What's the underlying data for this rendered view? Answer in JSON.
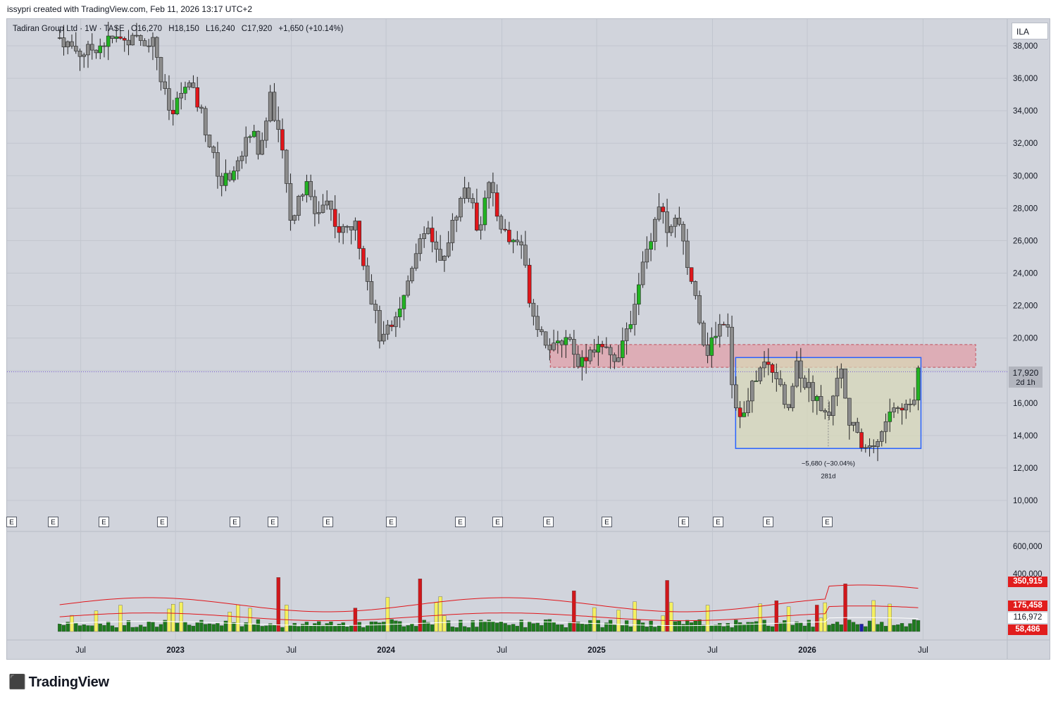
{
  "caption": "issypri created with TradingView.com, Feb 11, 2026 13:17 UTC+2",
  "legend": {
    "symbol": "Tadiran Group Ltd · 1W · TASE",
    "open": "O16,270",
    "high": "H18,150",
    "low": "L16,240",
    "close": "C17,920",
    "change": "+1,650 (+10.14%)"
  },
  "currency": "ILA",
  "current_price": {
    "value": "17,920",
    "countdown": "2d 1h"
  },
  "measure": {
    "change": "−5,680 (−30.04%)",
    "duration": "281d"
  },
  "volume_badges": [
    {
      "label": "350,915",
      "color": "#e11d1d",
      "value": 350915
    },
    {
      "label": "175,458",
      "color": "#e11d1d",
      "value": 175458
    },
    {
      "label": "116,972",
      "color": "#ffffff",
      "text_color": "#131722",
      "value": 116972
    },
    {
      "label": "58,486",
      "color": "#e11d1d",
      "value": 58486
    }
  ],
  "earnings_marker_label": "E",
  "brand": "TradingView",
  "colors": {
    "up": "#22b322",
    "down": "#e0161b",
    "neutral": "#8c8c8c",
    "zone_fill": "#e0a0aa",
    "range_border": "#2962ff",
    "range_fill": "#d9d8b6",
    "vol_green": "#1e7a1e",
    "vol_yellow": "#f5f060",
    "vol_red": "#d0171b",
    "vol_blue": "#1c1fa8",
    "ma_red": "#e0161b"
  },
  "chart_data": {
    "type": "candlestick",
    "title": "Tadiran Group Ltd · 1W · TASE",
    "ylabel": "",
    "ylim": [
      9000,
      39000
    ],
    "y_ticks": [
      "38,000",
      "36,000",
      "34,000",
      "32,000",
      "30,000",
      "28,000",
      "26,000",
      "24,000",
      "22,000",
      "20,000",
      "18,000",
      "16,000",
      "14,000",
      "12,000",
      "10,000"
    ],
    "x_ticks": [
      "Jul",
      "2023",
      "Jul",
      "2024",
      "Jul",
      "2025",
      "Jul",
      "2026",
      "Jul"
    ],
    "volume_ticks": [
      "600,000",
      "400,000"
    ],
    "price_path": [
      [
        2022.45,
        38500
      ],
      [
        2022.55,
        37500
      ],
      [
        2022.7,
        38400
      ],
      [
        2022.9,
        38300
      ],
      [
        2022.93,
        36000
      ],
      [
        2022.98,
        33500
      ],
      [
        2023.05,
        36000
      ],
      [
        2023.12,
        34000
      ],
      [
        2023.17,
        31500
      ],
      [
        2023.22,
        29500
      ],
      [
        2023.3,
        30800
      ],
      [
        2023.36,
        33000
      ],
      [
        2023.4,
        31200
      ],
      [
        2023.45,
        35000
      ],
      [
        2023.5,
        32000
      ],
      [
        2023.55,
        27200
      ],
      [
        2023.62,
        29500
      ],
      [
        2023.66,
        27700
      ],
      [
        2023.72,
        28500
      ],
      [
        2023.78,
        26500
      ],
      [
        2023.85,
        27000
      ],
      [
        2023.9,
        24500
      ],
      [
        2023.93,
        22500
      ],
      [
        2023.98,
        19500
      ],
      [
        2024.02,
        21000
      ],
      [
        2024.08,
        22300
      ],
      [
        2024.14,
        25500
      ],
      [
        2024.2,
        27000
      ],
      [
        2024.26,
        24500
      ],
      [
        2024.32,
        27200
      ],
      [
        2024.38,
        29500
      ],
      [
        2024.44,
        26500
      ],
      [
        2024.48,
        29800
      ],
      [
        2024.53,
        27500
      ],
      [
        2024.58,
        26000
      ],
      [
        2024.64,
        26000
      ],
      [
        2024.69,
        21800
      ],
      [
        2024.75,
        20000
      ],
      [
        2024.8,
        19200
      ],
      [
        2024.86,
        20300
      ],
      [
        2024.92,
        18400
      ],
      [
        2024.98,
        19500
      ],
      [
        2025.03,
        19200
      ],
      [
        2025.08,
        18700
      ],
      [
        2025.14,
        20000
      ],
      [
        2025.2,
        23500
      ],
      [
        2025.25,
        26000
      ],
      [
        2025.3,
        28500
      ],
      [
        2025.34,
        26200
      ],
      [
        2025.38,
        27500
      ],
      [
        2025.43,
        24500
      ],
      [
        2025.48,
        22000
      ],
      [
        2025.52,
        19000
      ],
      [
        2025.57,
        20500
      ],
      [
        2025.62,
        21500
      ],
      [
        2025.65,
        16000
      ],
      [
        2025.7,
        15200
      ],
      [
        2025.75,
        17500
      ],
      [
        2025.8,
        18500
      ],
      [
        2025.86,
        17800
      ],
      [
        2025.9,
        15000
      ],
      [
        2025.95,
        18500
      ],
      [
        2026.0,
        17000
      ],
      [
        2026.05,
        16200
      ],
      [
        2026.1,
        15000
      ],
      [
        2026.15,
        18500
      ],
      [
        2026.2,
        15000
      ],
      [
        2026.25,
        13500
      ],
      [
        2026.3,
        13200
      ],
      [
        2026.35,
        14000
      ],
      [
        2026.4,
        15800
      ],
      [
        2026.45,
        15500
      ],
      [
        2026.5,
        16000
      ],
      [
        2026.53,
        17920
      ]
    ],
    "support_zone": [
      18200,
      19600
    ],
    "range_box": {
      "low": 13200,
      "high": 18800
    },
    "last_close": 17920
  }
}
